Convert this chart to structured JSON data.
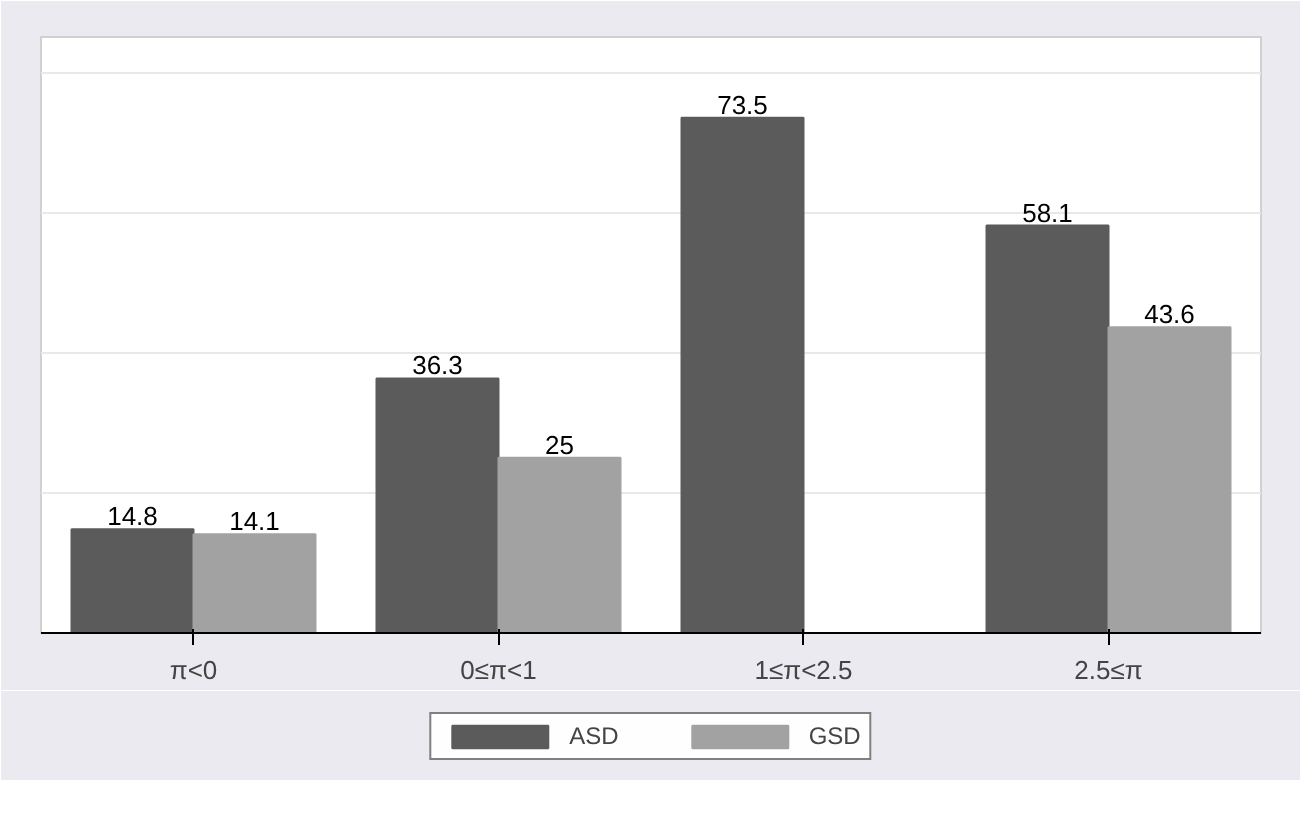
{
  "chart_data": {
    "type": "bar",
    "categories": [
      "π<0",
      "0≤π<1",
      "1≤π<2.5",
      "2.5≤π"
    ],
    "series": [
      {
        "name": "ASD",
        "color": "#5b5b5b",
        "values": [
          14.8,
          36.3,
          73.5,
          58.1
        ]
      },
      {
        "name": "GSD",
        "color": "#a2a2a2",
        "values": [
          14.1,
          25,
          null,
          43.6
        ]
      }
    ],
    "ylim": [
      0,
      85
    ],
    "yticks": [
      {
        "value": 0,
        "label": null
      },
      {
        "value": 20,
        "label": null
      },
      {
        "value": 40,
        "label": null
      },
      {
        "value": 60,
        "label": null
      },
      {
        "value": 80,
        "label": null
      }
    ],
    "tick_labels": "x",
    "grid": "y",
    "legend": "bottom",
    "data_labels": true
  }
}
